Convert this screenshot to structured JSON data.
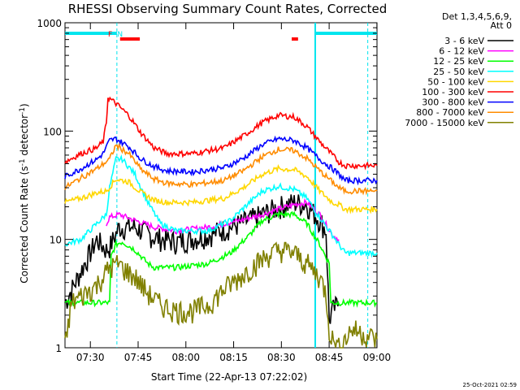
{
  "chart_data": {
    "type": "line",
    "title": "RHESSI Observing Summary Count Rates, Corrected",
    "xlabel": "Start Time (22-Apr-13 07:22:02)",
    "ylabel_main": "Corrected Count Rate (s",
    "ylabel_sup1": "-1",
    "ylabel_mid": " detector",
    "ylabel_sup2": "-1",
    "ylabel_end": ")",
    "x_unit": "minutes after 07:22:02",
    "xlim": [
      0,
      98
    ],
    "ylim": [
      1,
      1000
    ],
    "y_scale": "log",
    "x_ticks": [
      {
        "label": "07:30",
        "x": 7.97
      },
      {
        "label": "07:45",
        "x": 22.97
      },
      {
        "label": "08:00",
        "x": 37.97
      },
      {
        "label": "08:15",
        "x": 52.97
      },
      {
        "label": "08:30",
        "x": 67.97
      },
      {
        "label": "08:45",
        "x": 82.97
      },
      {
        "label": "09:00",
        "x": 97.97
      }
    ],
    "y_ticks": [
      {
        "label": "1000",
        "y": 1000
      },
      {
        "label": "100",
        "y": 100
      },
      {
        "label": "10",
        "y": 10
      },
      {
        "label": "1",
        "y": 1
      }
    ],
    "legend_header": [
      "Det 1,3,4,5,6,9,",
      "Att 0"
    ],
    "legend_placement": "right",
    "series": [
      {
        "name": "3 - 6 keV",
        "color": "#000000",
        "x": [
          0,
          10,
          13,
          14,
          17,
          22,
          28,
          35,
          45,
          55,
          62,
          67,
          72,
          76,
          80,
          82,
          83,
          84,
          86
        ],
        "y": [
          2.6,
          10,
          8,
          8.5,
          13,
          13,
          10.5,
          9.5,
          11,
          14,
          17,
          20,
          22,
          21,
          15,
          12,
          1.8,
          2.2,
          2.6
        ]
      },
      {
        "name": "6 - 12 keV",
        "color": "#ff00ff",
        "x": [
          13,
          14,
          17,
          22,
          28,
          35,
          45,
          55,
          62,
          67,
          72,
          76,
          80,
          84,
          86
        ],
        "y": [
          14,
          16,
          17,
          15,
          13,
          12,
          13,
          15,
          17,
          19,
          21,
          22,
          17,
          11,
          10
        ]
      },
      {
        "name": "12 - 25 keV",
        "color": "#00ff00",
        "x": [
          0,
          14,
          14.5,
          16,
          18,
          22,
          26,
          28,
          35,
          45,
          52,
          58,
          62,
          67,
          72,
          76,
          80,
          83,
          83.5,
          98
        ],
        "y": [
          2.6,
          2.6,
          7,
          9,
          9.5,
          8,
          6,
          5.5,
          5.5,
          6,
          7.5,
          11,
          15,
          17,
          17,
          14,
          9,
          6,
          2.6,
          2.6
        ]
      },
      {
        "name": "25 - 50 keV",
        "color": "#00ffff",
        "x": [
          0,
          5,
          10,
          13,
          14,
          16,
          18,
          22,
          26,
          30,
          35,
          45,
          52,
          58,
          62,
          67,
          72,
          76,
          80,
          84,
          86,
          88,
          98
        ],
        "y": [
          9,
          10,
          14,
          17,
          30,
          55,
          55,
          40,
          22,
          14,
          12,
          12,
          15,
          22,
          28,
          31,
          29,
          24,
          16,
          11,
          9,
          7.5,
          7.5
        ]
      },
      {
        "name": "50 - 100 keV",
        "color": "#ffd700",
        "x": [
          0,
          5,
          10,
          13,
          16,
          20,
          24,
          28,
          32,
          40,
          50,
          56,
          62,
          67,
          72,
          76,
          80,
          84,
          86,
          88,
          98
        ],
        "y": [
          22,
          24,
          27,
          28,
          36,
          34,
          27,
          23,
          22,
          22,
          24,
          30,
          40,
          45,
          44,
          38,
          28,
          22,
          21,
          19,
          19
        ]
      },
      {
        "name": "100 - 300 keV",
        "color": "#ff0000",
        "x": [
          0,
          5,
          10,
          12,
          13,
          13.5,
          16,
          20,
          24,
          28,
          32,
          40,
          50,
          56,
          62,
          67,
          72,
          76,
          80,
          84,
          86,
          88,
          98
        ],
        "y": [
          52,
          62,
          70,
          80,
          120,
          205,
          180,
          140,
          95,
          70,
          62,
          62,
          70,
          90,
          120,
          140,
          135,
          110,
          80,
          60,
          52,
          48,
          48
        ]
      },
      {
        "name": "300 - 800 keV",
        "color": "#0000ff",
        "x": [
          0,
          5,
          10,
          12,
          14,
          16,
          20,
          24,
          28,
          32,
          40,
          50,
          56,
          62,
          67,
          72,
          76,
          80,
          84,
          86,
          88,
          98
        ],
        "y": [
          38,
          45,
          55,
          62,
          82,
          85,
          72,
          55,
          47,
          43,
          42,
          46,
          56,
          75,
          85,
          82,
          70,
          55,
          45,
          40,
          35,
          35
        ]
      },
      {
        "name": "800 - 7000 keV",
        "color": "#ff8c00",
        "x": [
          0,
          5,
          10,
          14,
          16,
          20,
          24,
          28,
          32,
          40,
          50,
          56,
          62,
          67,
          72,
          76,
          80,
          84,
          86,
          88,
          98
        ],
        "y": [
          30,
          37,
          45,
          55,
          74,
          62,
          44,
          36,
          33,
          32,
          35,
          43,
          58,
          68,
          66,
          56,
          43,
          34,
          30,
          28,
          28
        ]
      },
      {
        "name": "7000 - 15000 keV",
        "color": "#808000",
        "x": [
          0,
          2,
          5,
          10,
          14,
          17,
          18,
          22,
          26,
          30,
          35,
          40,
          45,
          50,
          55,
          60,
          65,
          68,
          72,
          76,
          80,
          82,
          83,
          84,
          86,
          88,
          90,
          98
        ],
        "y": [
          1,
          2.6,
          3,
          3.8,
          5.5,
          6,
          5.5,
          4.5,
          3.2,
          2.5,
          2.2,
          2.2,
          2.5,
          3.5,
          4.5,
          6,
          7.5,
          8,
          7.5,
          6,
          4.5,
          3.2,
          1.5,
          1.2,
          1,
          1.2,
          1.5,
          1.2
        ]
      }
    ],
    "markers": {
      "saa_bars": [
        {
          "x0": 0,
          "x1": 16.3
        },
        {
          "x0": 78.6,
          "x1": 98
        }
      ],
      "saa_color": "#00e5ee",
      "night_dashed": [
        16.3,
        95.1
      ],
      "flare_bars": [
        {
          "x0": 17.3,
          "x1": 23.5
        },
        {
          "x0": 71.2,
          "x1": 73.2
        }
      ],
      "flare_color": "#ff0000",
      "night_line": 78.6,
      "labels": [
        {
          "text": "F",
          "color": "#ff0000",
          "x": 14.2
        },
        {
          "text": "N",
          "color": "#00e5ee",
          "x": 17.3
        }
      ]
    },
    "footer_timestamp": "25-Oct-2021 02:59"
  }
}
